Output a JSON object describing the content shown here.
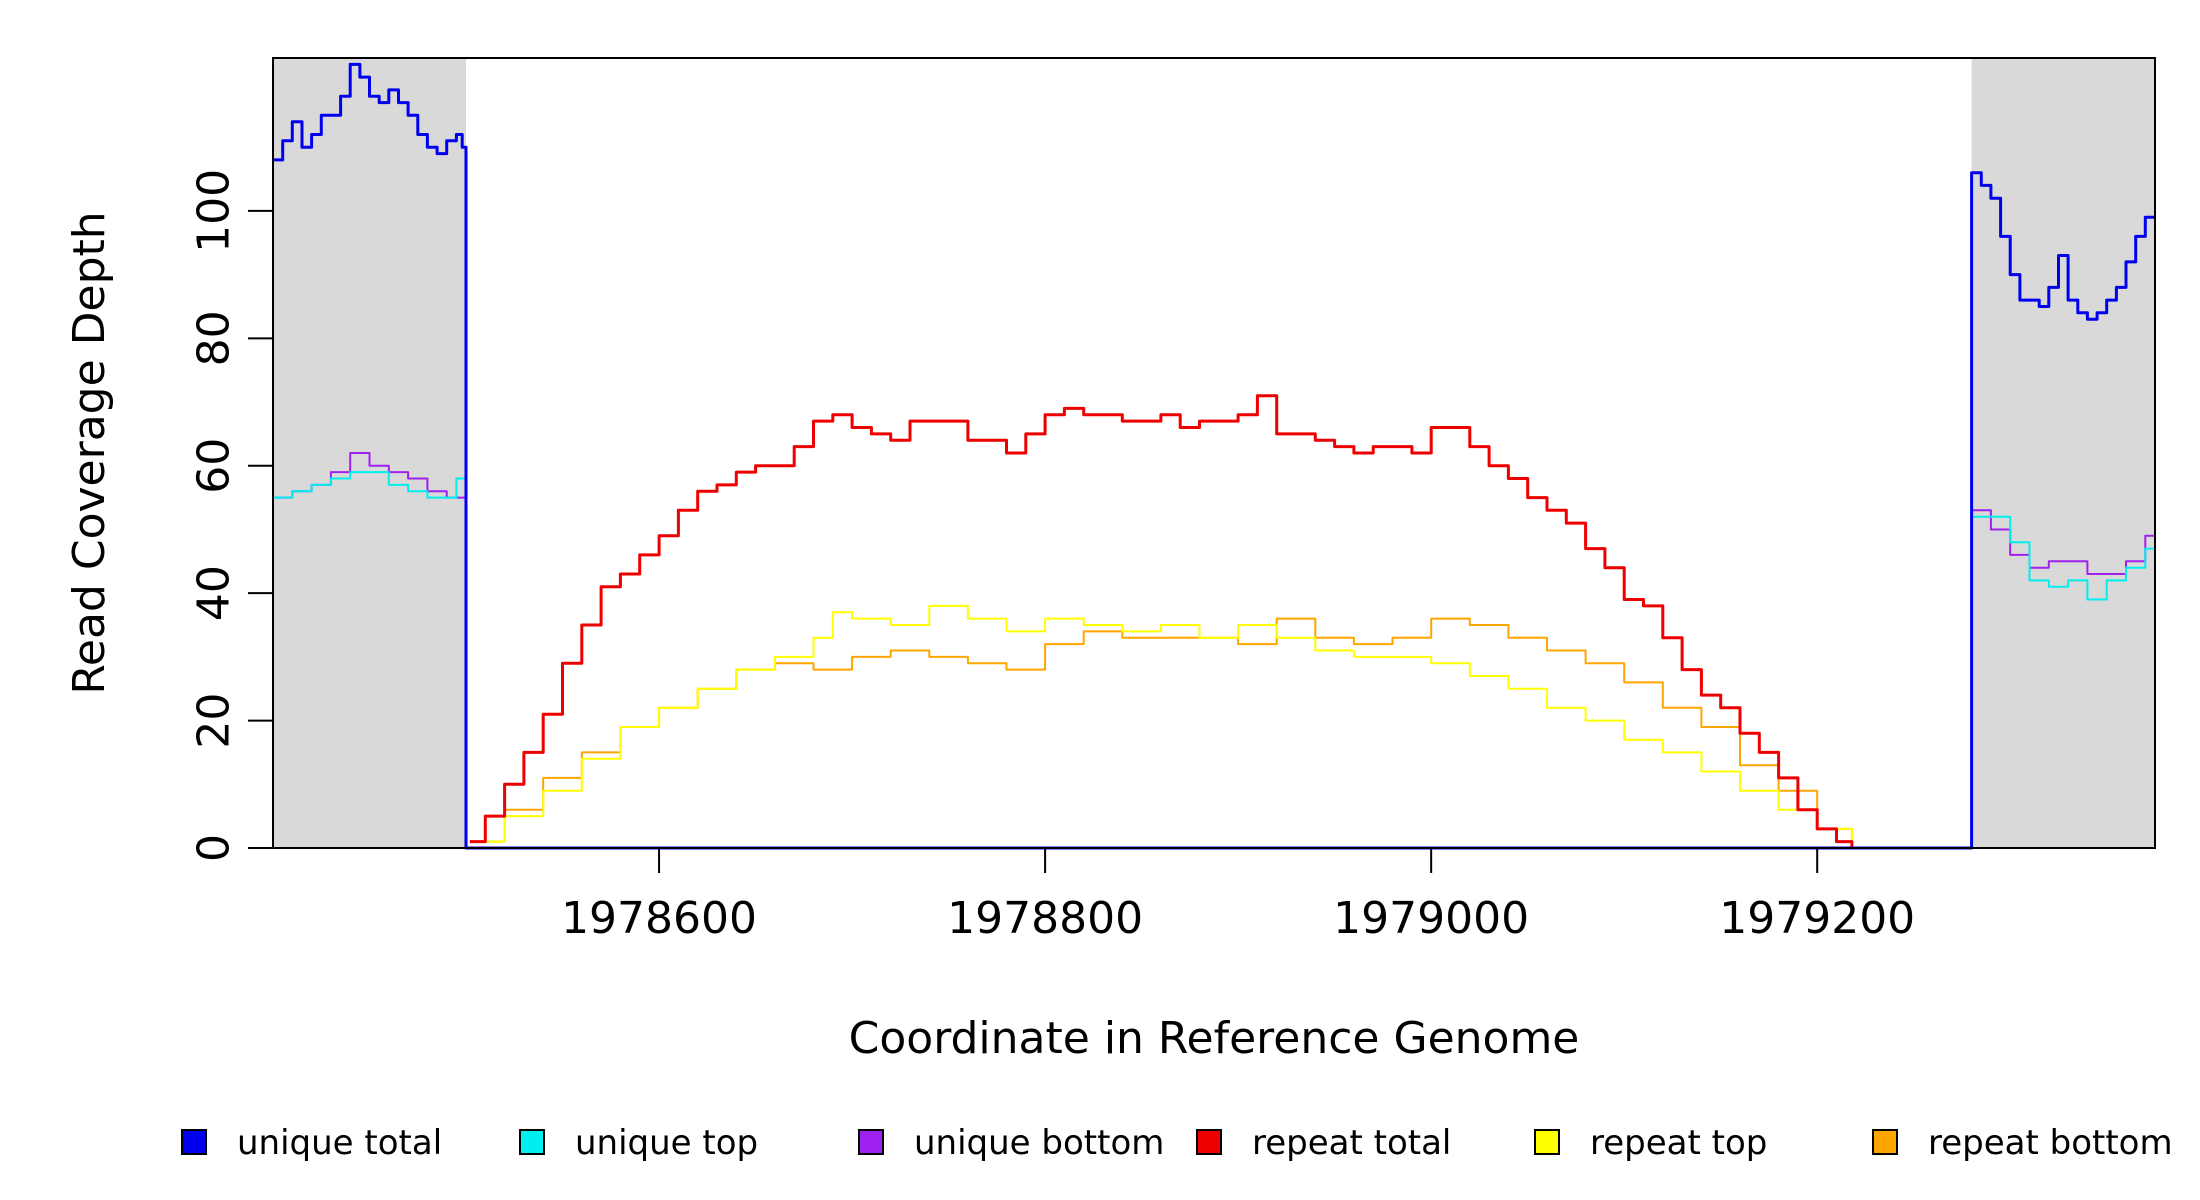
{
  "chart_data": {
    "type": "line",
    "title": "",
    "xlabel": "Coordinate in Reference Genome",
    "ylabel": "Read Coverage Depth",
    "xlim": [
      1978400,
      1979375
    ],
    "ylim": [
      0,
      124
    ],
    "x_ticks": [
      1978600,
      1978800,
      1979000,
      1979200
    ],
    "x_tick_labels": [
      "1978600",
      "1978800",
      "1979000",
      "1979200"
    ],
    "y_ticks": [
      0,
      20,
      40,
      60,
      80,
      100
    ],
    "y_tick_labels": [
      "0",
      "20",
      "40",
      "60",
      "80",
      "100"
    ],
    "grid": false,
    "legend_position": "bottom",
    "shaded_regions": [
      {
        "x_start": 1978400,
        "x_end": 1978500,
        "color": "#d9d9d9"
      },
      {
        "x_start": 1979280,
        "x_end": 1979375,
        "color": "#d9d9d9"
      }
    ],
    "series": [
      {
        "name": "unique total",
        "color": "#0000ee",
        "width": 3,
        "points": [
          [
            1978400,
            108
          ],
          [
            1978405,
            111
          ],
          [
            1978410,
            114
          ],
          [
            1978415,
            110
          ],
          [
            1978420,
            112
          ],
          [
            1978425,
            115
          ],
          [
            1978430,
            115
          ],
          [
            1978435,
            118
          ],
          [
            1978440,
            123
          ],
          [
            1978445,
            121
          ],
          [
            1978450,
            118
          ],
          [
            1978455,
            117
          ],
          [
            1978460,
            119
          ],
          [
            1978465,
            117
          ],
          [
            1978470,
            115
          ],
          [
            1978475,
            112
          ],
          [
            1978480,
            110
          ],
          [
            1978485,
            109
          ],
          [
            1978490,
            111
          ],
          [
            1978495,
            112
          ],
          [
            1978498,
            110
          ],
          [
            1978500,
            106
          ],
          [
            1978500,
            0
          ],
          [
            1979280,
            0
          ],
          [
            1979280,
            106
          ],
          [
            1979285,
            104
          ],
          [
            1979290,
            102
          ],
          [
            1979295,
            96
          ],
          [
            1979300,
            90
          ],
          [
            1979305,
            86
          ],
          [
            1979310,
            86
          ],
          [
            1979315,
            85
          ],
          [
            1979320,
            88
          ],
          [
            1979325,
            93
          ],
          [
            1979330,
            86
          ],
          [
            1979335,
            84
          ],
          [
            1979340,
            83
          ],
          [
            1979345,
            84
          ],
          [
            1979350,
            86
          ],
          [
            1979355,
            88
          ],
          [
            1979360,
            92
          ],
          [
            1979365,
            96
          ],
          [
            1979370,
            99
          ],
          [
            1979375,
            99
          ]
        ]
      },
      {
        "name": "unique top",
        "color": "#00eeee",
        "width": 2,
        "points": [
          [
            1978400,
            55
          ],
          [
            1978410,
            56
          ],
          [
            1978420,
            57
          ],
          [
            1978430,
            58
          ],
          [
            1978440,
            59
          ],
          [
            1978450,
            59
          ],
          [
            1978460,
            57
          ],
          [
            1978470,
            56
          ],
          [
            1978480,
            55
          ],
          [
            1978490,
            55
          ],
          [
            1978495,
            58
          ],
          [
            1978500,
            56
          ],
          [
            1978500,
            0
          ],
          [
            1979280,
            0
          ],
          [
            1979280,
            52
          ],
          [
            1979290,
            52
          ],
          [
            1979300,
            48
          ],
          [
            1979310,
            42
          ],
          [
            1979320,
            41
          ],
          [
            1979330,
            42
          ],
          [
            1979340,
            39
          ],
          [
            1979350,
            42
          ],
          [
            1979360,
            44
          ],
          [
            1979370,
            47
          ],
          [
            1979375,
            48
          ]
        ]
      },
      {
        "name": "unique bottom",
        "color": "#a020f0",
        "width": 2,
        "points": [
          [
            1978400,
            55
          ],
          [
            1978410,
            56
          ],
          [
            1978420,
            57
          ],
          [
            1978430,
            59
          ],
          [
            1978440,
            62
          ],
          [
            1978450,
            60
          ],
          [
            1978460,
            59
          ],
          [
            1978470,
            58
          ],
          [
            1978480,
            56
          ],
          [
            1978490,
            55
          ],
          [
            1978500,
            54
          ],
          [
            1978500,
            0
          ],
          [
            1979280,
            0
          ],
          [
            1979280,
            53
          ],
          [
            1979290,
            50
          ],
          [
            1979300,
            46
          ],
          [
            1979310,
            44
          ],
          [
            1979320,
            45
          ],
          [
            1979330,
            45
          ],
          [
            1979340,
            43
          ],
          [
            1979350,
            43
          ],
          [
            1979360,
            45
          ],
          [
            1979370,
            49
          ],
          [
            1979375,
            51
          ]
        ]
      },
      {
        "name": "repeat total",
        "color": "#ee0000",
        "width": 3,
        "points": [
          [
            1978502,
            1
          ],
          [
            1978510,
            5
          ],
          [
            1978520,
            10
          ],
          [
            1978530,
            15
          ],
          [
            1978540,
            21
          ],
          [
            1978550,
            29
          ],
          [
            1978560,
            35
          ],
          [
            1978570,
            41
          ],
          [
            1978580,
            43
          ],
          [
            1978590,
            46
          ],
          [
            1978600,
            49
          ],
          [
            1978610,
            53
          ],
          [
            1978620,
            56
          ],
          [
            1978630,
            57
          ],
          [
            1978640,
            59
          ],
          [
            1978650,
            60
          ],
          [
            1978660,
            60
          ],
          [
            1978670,
            63
          ],
          [
            1978680,
            67
          ],
          [
            1978690,
            68
          ],
          [
            1978700,
            66
          ],
          [
            1978710,
            65
          ],
          [
            1978720,
            64
          ],
          [
            1978730,
            67
          ],
          [
            1978740,
            67
          ],
          [
            1978750,
            67
          ],
          [
            1978760,
            64
          ],
          [
            1978770,
            64
          ],
          [
            1978780,
            62
          ],
          [
            1978790,
            65
          ],
          [
            1978800,
            68
          ],
          [
            1978810,
            69
          ],
          [
            1978820,
            68
          ],
          [
            1978830,
            68
          ],
          [
            1978840,
            67
          ],
          [
            1978850,
            67
          ],
          [
            1978860,
            68
          ],
          [
            1978870,
            66
          ],
          [
            1978880,
            67
          ],
          [
            1978890,
            67
          ],
          [
            1978900,
            68
          ],
          [
            1978910,
            71
          ],
          [
            1978920,
            65
          ],
          [
            1978930,
            65
          ],
          [
            1978940,
            64
          ],
          [
            1978950,
            63
          ],
          [
            1978960,
            62
          ],
          [
            1978970,
            63
          ],
          [
            1978980,
            63
          ],
          [
            1978990,
            62
          ],
          [
            1979000,
            66
          ],
          [
            1979010,
            66
          ],
          [
            1979020,
            63
          ],
          [
            1979030,
            60
          ],
          [
            1979040,
            58
          ],
          [
            1979050,
            55
          ],
          [
            1979060,
            53
          ],
          [
            1979070,
            51
          ],
          [
            1979080,
            47
          ],
          [
            1979090,
            44
          ],
          [
            1979100,
            39
          ],
          [
            1979110,
            38
          ],
          [
            1979120,
            33
          ],
          [
            1979130,
            28
          ],
          [
            1979140,
            24
          ],
          [
            1979150,
            22
          ],
          [
            1979160,
            18
          ],
          [
            1979170,
            15
          ],
          [
            1979180,
            11
          ],
          [
            1979190,
            6
          ],
          [
            1979200,
            3
          ],
          [
            1979210,
            1
          ],
          [
            1979218,
            0
          ]
        ]
      },
      {
        "name": "repeat top",
        "color": "#ffff00",
        "width": 2,
        "points": [
          [
            1978502,
            1
          ],
          [
            1978520,
            5
          ],
          [
            1978540,
            9
          ],
          [
            1978560,
            14
          ],
          [
            1978580,
            19
          ],
          [
            1978600,
            22
          ],
          [
            1978620,
            25
          ],
          [
            1978640,
            28
          ],
          [
            1978660,
            30
          ],
          [
            1978680,
            33
          ],
          [
            1978690,
            37
          ],
          [
            1978700,
            36
          ],
          [
            1978720,
            35
          ],
          [
            1978740,
            38
          ],
          [
            1978760,
            36
          ],
          [
            1978780,
            34
          ],
          [
            1978800,
            36
          ],
          [
            1978820,
            35
          ],
          [
            1978840,
            34
          ],
          [
            1978860,
            35
          ],
          [
            1978880,
            33
          ],
          [
            1978900,
            35
          ],
          [
            1978920,
            33
          ],
          [
            1978940,
            31
          ],
          [
            1978960,
            30
          ],
          [
            1978980,
            30
          ],
          [
            1979000,
            29
          ],
          [
            1979020,
            27
          ],
          [
            1979040,
            25
          ],
          [
            1979060,
            22
          ],
          [
            1979080,
            20
          ],
          [
            1979100,
            17
          ],
          [
            1979120,
            15
          ],
          [
            1979140,
            12
          ],
          [
            1979160,
            9
          ],
          [
            1979180,
            6
          ],
          [
            1979200,
            3
          ],
          [
            1979218,
            0
          ]
        ]
      },
      {
        "name": "repeat bottom",
        "color": "#ffa500",
        "width": 2,
        "points": [
          [
            1978502,
            1
          ],
          [
            1978520,
            6
          ],
          [
            1978540,
            11
          ],
          [
            1978560,
            15
          ],
          [
            1978580,
            19
          ],
          [
            1978600,
            22
          ],
          [
            1978620,
            25
          ],
          [
            1978640,
            28
          ],
          [
            1978660,
            29
          ],
          [
            1978680,
            28
          ],
          [
            1978700,
            30
          ],
          [
            1978720,
            31
          ],
          [
            1978740,
            30
          ],
          [
            1978760,
            29
          ],
          [
            1978780,
            28
          ],
          [
            1978800,
            32
          ],
          [
            1978820,
            34
          ],
          [
            1978840,
            33
          ],
          [
            1978860,
            33
          ],
          [
            1978880,
            33
          ],
          [
            1978900,
            32
          ],
          [
            1978920,
            36
          ],
          [
            1978940,
            33
          ],
          [
            1978960,
            32
          ],
          [
            1978980,
            33
          ],
          [
            1979000,
            36
          ],
          [
            1979020,
            35
          ],
          [
            1979040,
            33
          ],
          [
            1979060,
            31
          ],
          [
            1979080,
            29
          ],
          [
            1979100,
            26
          ],
          [
            1979120,
            22
          ],
          [
            1979140,
            19
          ],
          [
            1979160,
            13
          ],
          [
            1979180,
            9
          ],
          [
            1979200,
            3
          ],
          [
            1979218,
            0
          ]
        ]
      }
    ]
  }
}
